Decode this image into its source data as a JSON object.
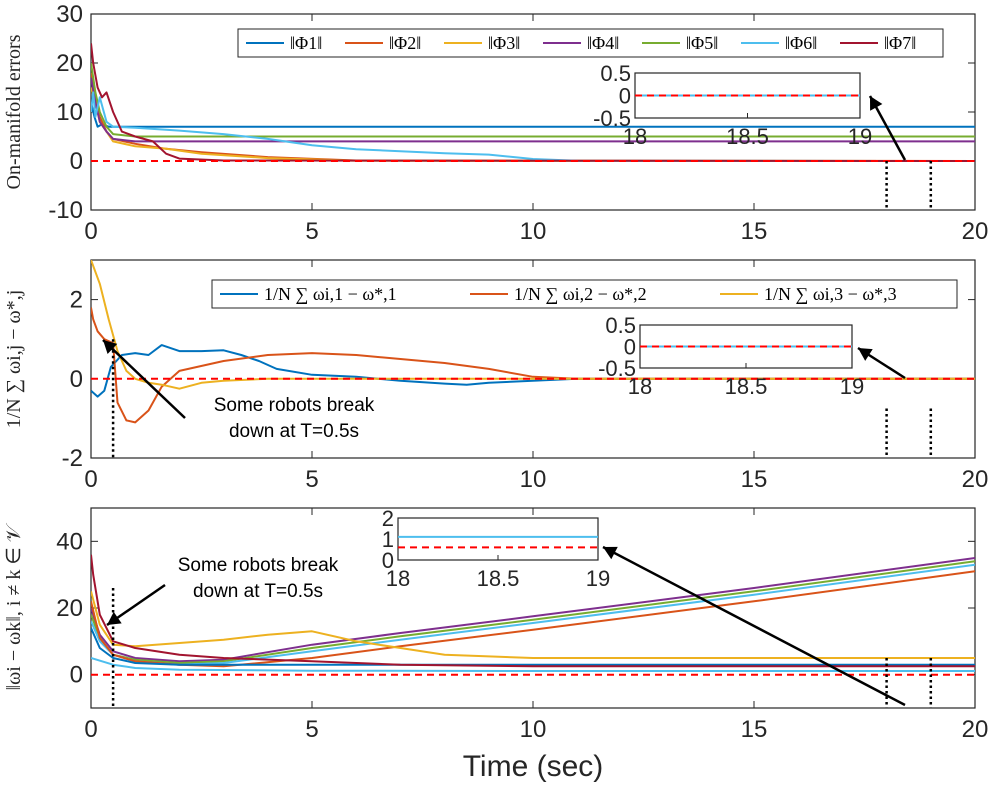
{
  "chart_data": [
    {
      "type": "line",
      "ylabel": "On-manifold errors",
      "xlim": [
        0,
        20
      ],
      "ylim": [
        -10,
        30
      ],
      "xticks": [
        "0",
        "5",
        "10",
        "15",
        "20"
      ],
      "yticks": [
        "-10",
        "0",
        "10",
        "20",
        "30"
      ],
      "legend_position": "top-right",
      "series": [
        {
          "name": "‖Φ1‖",
          "color": "#0072BD",
          "x": [
            0,
            0.08,
            0.15,
            0.25,
            0.4,
            0.6,
            1,
            20
          ],
          "y": [
            12,
            9,
            7,
            7.5,
            7,
            7,
            7,
            7
          ]
        },
        {
          "name": "‖Φ2‖",
          "color": "#D95319",
          "x": [
            0,
            0.1,
            0.2,
            0.35,
            0.5,
            1,
            1.7,
            2.5,
            4,
            6,
            20
          ],
          "y": [
            18,
            13,
            9,
            6,
            4.5,
            3.5,
            2.5,
            1.8,
            0.8,
            0.1,
            0
          ]
        },
        {
          "name": "‖Φ3‖",
          "color": "#EDB120",
          "x": [
            0,
            0.1,
            0.2,
            0.35,
            0.5,
            1,
            1.7,
            2.5,
            4,
            6,
            20
          ],
          "y": [
            15,
            12,
            8,
            6,
            4,
            3,
            2.5,
            1.5,
            0.6,
            0.05,
            0
          ]
        },
        {
          "name": "‖Φ4‖",
          "color": "#7E2F8E",
          "x": [
            0,
            0.1,
            0.2,
            0.35,
            0.5,
            1,
            20
          ],
          "y": [
            17,
            12,
            8,
            6,
            4.5,
            4,
            4
          ]
        },
        {
          "name": "‖Φ5‖",
          "color": "#77AC30",
          "x": [
            0,
            0.1,
            0.2,
            0.35,
            0.5,
            1,
            20
          ],
          "y": [
            20,
            14,
            10,
            7,
            5.5,
            5,
            5
          ]
        },
        {
          "name": "‖Φ6‖",
          "color": "#4DBEEE",
          "x": [
            0,
            0.05,
            0.1,
            0.2,
            0.35,
            0.5,
            1,
            2,
            3,
            4,
            5,
            6,
            7,
            8,
            9,
            10,
            11,
            20
          ],
          "y": [
            10,
            14,
            9,
            13,
            8,
            7,
            6.8,
            6.2,
            5.5,
            4.5,
            3.2,
            2.4,
            2.0,
            1.6,
            1.3,
            0.4,
            0.05,
            0
          ]
        },
        {
          "name": "‖Φ7‖",
          "color": "#A2142F",
          "x": [
            0,
            0.05,
            0.15,
            0.25,
            0.35,
            0.5,
            0.7,
            1,
            1.4,
            1.7,
            2,
            3,
            20
          ],
          "y": [
            24,
            20,
            15,
            13,
            14,
            10,
            6,
            5,
            4,
            1.5,
            0.5,
            0.1,
            0
          ]
        },
        {
          "name": "",
          "color": "#FF0000",
          "dashed": true,
          "x": [
            0,
            20
          ],
          "y": [
            0,
            0
          ]
        }
      ],
      "vlines": [
        18,
        19
      ],
      "inset": {
        "xlim": [
          18,
          19
        ],
        "ylim": [
          -0.5,
          0.5
        ],
        "xticks": [
          "18",
          "18.5",
          "19"
        ],
        "yticks": [
          "-0.5",
          "0",
          "0.5"
        ]
      }
    },
    {
      "type": "line",
      "ylabel": "1/N ∑ ωi,j − ω*,j",
      "xlim": [
        0,
        20
      ],
      "ylim": [
        -2,
        3
      ],
      "xticks": [
        "0",
        "5",
        "10",
        "15",
        "20"
      ],
      "yticks": [
        "-2",
        "0",
        "2"
      ],
      "legend_position": "top-right",
      "series": [
        {
          "name": "1/N ∑ ωi,1 − ω*,1",
          "color": "#0072BD",
          "x": [
            0,
            0.15,
            0.3,
            0.45,
            0.7,
            1,
            1.3,
            1.6,
            2,
            2.5,
            3,
            3.4,
            3.8,
            4.2,
            5,
            6,
            7,
            8,
            8.5,
            9,
            10,
            11,
            20
          ],
          "y": [
            -0.3,
            -0.45,
            -0.3,
            0.3,
            0.6,
            0.65,
            0.6,
            0.85,
            0.7,
            0.7,
            0.72,
            0.6,
            0.45,
            0.25,
            0.1,
            0.05,
            -0.05,
            -0.12,
            -0.15,
            -0.1,
            -0.05,
            0,
            0
          ]
        },
        {
          "name": "1/N ∑ ωi,2 − ω*,2",
          "color": "#D95319",
          "x": [
            0,
            0.05,
            0.15,
            0.3,
            0.5,
            0.6,
            0.8,
            1,
            1.3,
            1.6,
            2,
            3,
            4,
            5,
            6,
            7,
            8,
            9,
            10,
            11,
            20
          ],
          "y": [
            1.8,
            1.5,
            1.2,
            1.0,
            0.9,
            -0.6,
            -1.05,
            -1.1,
            -0.8,
            -0.2,
            0.2,
            0.45,
            0.6,
            0.65,
            0.6,
            0.5,
            0.4,
            0.25,
            0.05,
            0,
            0
          ]
        },
        {
          "name": "1/N ∑ ωi,3 − ω*,3",
          "color": "#EDB120",
          "x": [
            0,
            0.2,
            0.4,
            0.6,
            0.8,
            1,
            1.3,
            1.6,
            2,
            2.5,
            3,
            4,
            20
          ],
          "y": [
            3.0,
            2.4,
            1.5,
            0.7,
            0.2,
            0,
            -0.1,
            -0.15,
            -0.25,
            -0.1,
            -0.05,
            0,
            0
          ]
        },
        {
          "name": "",
          "color": "#FF0000",
          "dashed": true,
          "x": [
            0,
            20
          ],
          "y": [
            0,
            0
          ]
        }
      ],
      "vlines": [
        0.5,
        18,
        19
      ],
      "annotation": {
        "lines": [
          "Some robots break",
          "down at T=0.5s"
        ]
      },
      "inset": {
        "xlim": [
          18,
          19
        ],
        "ylim": [
          -0.5,
          0.5
        ],
        "xticks": [
          "18",
          "18.5",
          "19"
        ],
        "yticks": [
          "-0.5",
          "0",
          "0.5"
        ]
      }
    },
    {
      "type": "line",
      "xlabel": "Time (sec)",
      "ylabel": "‖ωi − ωk‖, i ≠ k ∈ 𝒱",
      "xlim": [
        0,
        20
      ],
      "ylim": [
        -10,
        50
      ],
      "xticks": [
        "0",
        "5",
        "10",
        "15",
        "20"
      ],
      "yticks": [
        "0",
        "20",
        "40"
      ],
      "series": [
        {
          "name": "",
          "color": "#7E2F8E",
          "x": [
            0,
            0.2,
            0.5,
            1,
            2,
            3,
            5,
            7,
            10,
            15,
            20
          ],
          "y": [
            20,
            12,
            7,
            5,
            4,
            4.5,
            9,
            12.5,
            17.5,
            26,
            35
          ]
        },
        {
          "name": "",
          "color": "#77AC30",
          "x": [
            0,
            0.2,
            0.5,
            1,
            2,
            3,
            5,
            7,
            10,
            15,
            20
          ],
          "y": [
            18,
            11,
            6,
            4.5,
            3.5,
            4,
            8,
            11.5,
            16.5,
            25,
            34
          ]
        },
        {
          "name": "",
          "color": "#4DBEEE",
          "x": [
            0,
            0.2,
            0.5,
            1,
            2,
            3,
            5,
            7,
            10,
            15,
            20
          ],
          "y": [
            16,
            10,
            6,
            4,
            3,
            3.5,
            7,
            10.5,
            15.5,
            24,
            33
          ]
        },
        {
          "name": "",
          "color": "#D95319",
          "x": [
            0,
            0.2,
            0.5,
            1,
            2,
            3,
            5,
            7,
            10,
            15,
            20
          ],
          "y": [
            22,
            11,
            6,
            4,
            3,
            2.5,
            5,
            8.5,
            13.5,
            22,
            31
          ]
        },
        {
          "name": "",
          "color": "#EDB120",
          "x": [
            0,
            0.2,
            0.5,
            1,
            2,
            3,
            4,
            5,
            6,
            7,
            8,
            10,
            20
          ],
          "y": [
            25,
            15,
            9,
            8.5,
            9.5,
            10.5,
            12,
            13,
            10,
            8,
            6,
            5,
            5
          ]
        },
        {
          "name": "",
          "color": "#0072BD",
          "x": [
            0,
            0.2,
            0.5,
            1,
            2,
            3,
            5,
            7,
            10,
            20
          ],
          "y": [
            14,
            8,
            5,
            3.5,
            3,
            3,
            3,
            3,
            3,
            3
          ]
        },
        {
          "name": "",
          "color": "#A2142F",
          "x": [
            0,
            0.05,
            0.2,
            0.5,
            1,
            2,
            3,
            5,
            7,
            10,
            20
          ],
          "y": [
            36,
            30,
            18,
            10,
            8,
            6,
            5,
            4,
            3,
            2.5,
            2.5
          ]
        },
        {
          "name": "",
          "color": "#4DBEEE",
          "x": [
            0,
            0.5,
            1,
            2,
            5,
            10,
            20
          ],
          "y": [
            5,
            3,
            2,
            1.5,
            1.2,
            1.1,
            1.1
          ]
        },
        {
          "name": "",
          "color": "#FF0000",
          "dashed": true,
          "x": [
            0,
            20
          ],
          "y": [
            0,
            0
          ]
        }
      ],
      "vlines": [
        0.5,
        18,
        19
      ],
      "annotation": {
        "lines": [
          "Some robots break",
          "down at T=0.5s"
        ]
      },
      "inset": {
        "xlim": [
          18,
          19
        ],
        "ylim": [
          0,
          2
        ],
        "xticks": [
          "18",
          "18.5",
          "19"
        ],
        "yticks": [
          "0",
          "1",
          "2"
        ]
      }
    }
  ]
}
